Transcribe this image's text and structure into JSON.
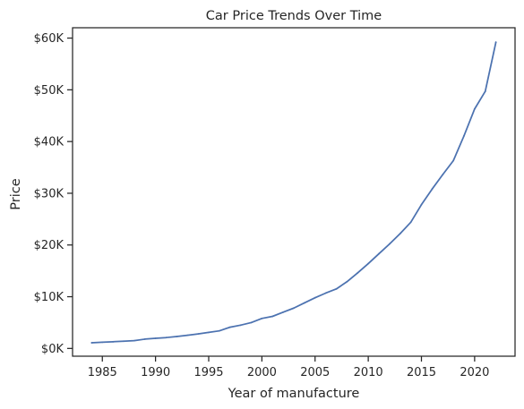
{
  "chart_data": {
    "type": "line",
    "title": "Car Price Trends Over Time",
    "xlabel": "Year of manufacture",
    "ylabel": "Price",
    "xlim": [
      1982.2,
      2023.8
    ],
    "ylim": [
      -1500,
      62000
    ],
    "x_ticks": [
      1985,
      1990,
      1995,
      2000,
      2005,
      2010,
      2015,
      2020
    ],
    "y_ticks": [
      0,
      10000,
      20000,
      30000,
      40000,
      50000,
      60000
    ],
    "y_tick_labels": [
      "$0K",
      "$10K",
      "$20K",
      "$30K",
      "$40K",
      "$50K",
      "$60K"
    ],
    "x_tick_labels": [
      "1985",
      "1990",
      "1995",
      "2000",
      "2005",
      "2010",
      "2015",
      "2020"
    ],
    "grid": false,
    "series": [
      {
        "color": "#4c72b0",
        "x": [
          1984,
          1985,
          1986,
          1987,
          1988,
          1989,
          1990,
          1991,
          1992,
          1993,
          1994,
          1995,
          1996,
          1997,
          1998,
          1999,
          2000,
          2001,
          2002,
          2003,
          2004,
          2005,
          2006,
          2007,
          2008,
          2009,
          2010,
          2011,
          2012,
          2013,
          2014,
          2015,
          2016,
          2017,
          2018,
          2019,
          2020,
          2021,
          2022
        ],
        "y": [
          1100,
          1200,
          1300,
          1400,
          1500,
          1800,
          1950,
          2100,
          2300,
          2550,
          2800,
          3100,
          3400,
          4100,
          4500,
          5000,
          5800,
          6200,
          7000,
          7800,
          8800,
          9800,
          10700,
          11500,
          12900,
          14600,
          16400,
          18300,
          20200,
          22200,
          24400,
          27800,
          30800,
          33600,
          36300,
          41100,
          46300,
          49700,
          59200
        ]
      }
    ]
  }
}
